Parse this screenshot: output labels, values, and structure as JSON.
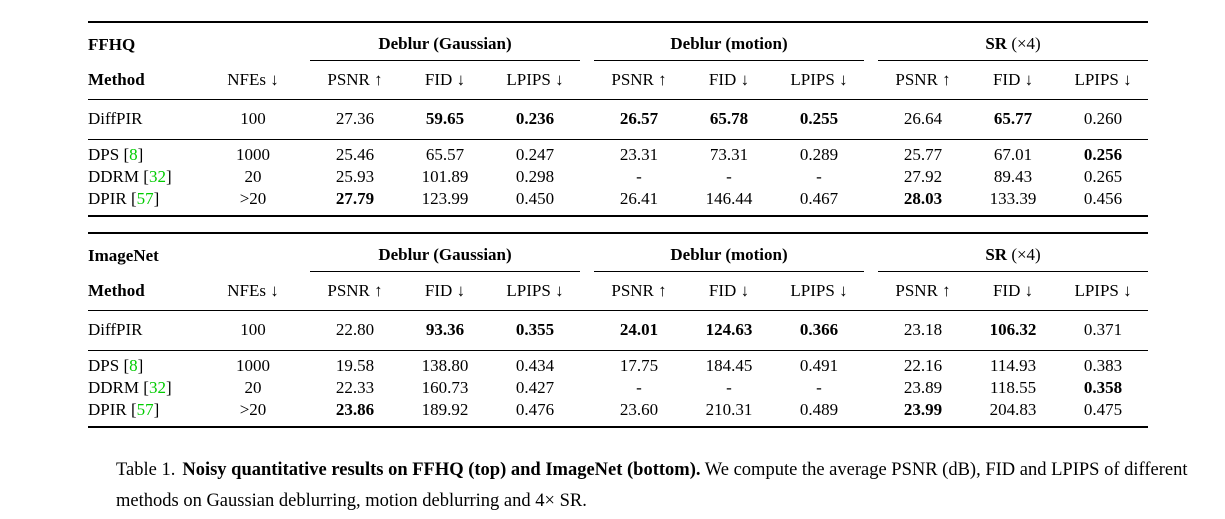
{
  "colors": {
    "cite_green": "#00CC00",
    "text": "#000000",
    "background": "#ffffff",
    "rule": "#000000"
  },
  "metric_labels": [
    "PSNR ↑",
    "FID ↓",
    "LPIPS ↓"
  ],
  "tables": [
    {
      "dataset": "FFHQ",
      "method_label": "Method",
      "nfes_label": "NFEs ↓",
      "groups": [
        {
          "bold": "Deblur (Gaussian)",
          "normal": ""
        },
        {
          "bold": "Deblur (motion)",
          "normal": ""
        },
        {
          "bold": "SR",
          "normal": " (×4)"
        }
      ],
      "rows": [
        {
          "method": "DiffPIR",
          "cite": null,
          "nfes": "100",
          "cells": [
            [
              "27.36",
              0
            ],
            [
              "59.65",
              1
            ],
            [
              "0.236",
              1
            ],
            [
              "26.57",
              1
            ],
            [
              "65.78",
              1
            ],
            [
              "0.255",
              1
            ],
            [
              "26.64",
              0
            ],
            [
              "65.77",
              1
            ],
            [
              "0.260",
              0
            ]
          ]
        },
        {
          "method": "DPS",
          "cite": "8",
          "nfes": "1000",
          "cells": [
            [
              "25.46",
              0
            ],
            [
              "65.57",
              0
            ],
            [
              "0.247",
              0
            ],
            [
              "23.31",
              0
            ],
            [
              "73.31",
              0
            ],
            [
              "0.289",
              0
            ],
            [
              "25.77",
              0
            ],
            [
              "67.01",
              0
            ],
            [
              "0.256",
              1
            ]
          ]
        },
        {
          "method": "DDRM",
          "cite": "32",
          "nfes": "20",
          "cells": [
            [
              "25.93",
              0
            ],
            [
              "101.89",
              0
            ],
            [
              "0.298",
              0
            ],
            [
              "-",
              0
            ],
            [
              "-",
              0
            ],
            [
              "-",
              0
            ],
            [
              "27.92",
              0
            ],
            [
              "89.43",
              0
            ],
            [
              "0.265",
              0
            ]
          ]
        },
        {
          "method": "DPIR",
          "cite": "57",
          "nfes": ">20",
          "cells": [
            [
              "27.79",
              1
            ],
            [
              "123.99",
              0
            ],
            [
              "0.450",
              0
            ],
            [
              "26.41",
              0
            ],
            [
              "146.44",
              0
            ],
            [
              "0.467",
              0
            ],
            [
              "28.03",
              1
            ],
            [
              "133.39",
              0
            ],
            [
              "0.456",
              0
            ]
          ]
        }
      ]
    },
    {
      "dataset": "ImageNet",
      "method_label": "Method",
      "nfes_label": "NFEs ↓",
      "groups": [
        {
          "bold": "Deblur (Gaussian)",
          "normal": ""
        },
        {
          "bold": "Deblur (motion)",
          "normal": ""
        },
        {
          "bold": "SR",
          "normal": " (×4)"
        }
      ],
      "rows": [
        {
          "method": "DiffPIR",
          "cite": null,
          "nfes": "100",
          "cells": [
            [
              "22.80",
              0
            ],
            [
              "93.36",
              1
            ],
            [
              "0.355",
              1
            ],
            [
              "24.01",
              1
            ],
            [
              "124.63",
              1
            ],
            [
              "0.366",
              1
            ],
            [
              "23.18",
              0
            ],
            [
              "106.32",
              1
            ],
            [
              "0.371",
              0
            ]
          ]
        },
        {
          "method": "DPS",
          "cite": "8",
          "nfes": "1000",
          "cells": [
            [
              "19.58",
              0
            ],
            [
              "138.80",
              0
            ],
            [
              "0.434",
              0
            ],
            [
              "17.75",
              0
            ],
            [
              "184.45",
              0
            ],
            [
              "0.491",
              0
            ],
            [
              "22.16",
              0
            ],
            [
              "114.93",
              0
            ],
            [
              "0.383",
              0
            ]
          ]
        },
        {
          "method": "DDRM",
          "cite": "32",
          "nfes": "20",
          "cells": [
            [
              "22.33",
              0
            ],
            [
              "160.73",
              0
            ],
            [
              "0.427",
              0
            ],
            [
              "-",
              0
            ],
            [
              "-",
              0
            ],
            [
              "-",
              0
            ],
            [
              "23.89",
              0
            ],
            [
              "118.55",
              0
            ],
            [
              "0.358",
              1
            ]
          ]
        },
        {
          "method": "DPIR",
          "cite": "57",
          "nfes": ">20",
          "cells": [
            [
              "23.86",
              1
            ],
            [
              "189.92",
              0
            ],
            [
              "0.476",
              0
            ],
            [
              "23.60",
              0
            ],
            [
              "210.31",
              0
            ],
            [
              "0.489",
              0
            ],
            [
              "23.99",
              1
            ],
            [
              "204.83",
              0
            ],
            [
              "0.475",
              0
            ]
          ]
        }
      ]
    }
  ],
  "caption": {
    "prefix": "Table 1.",
    "bold": "Noisy quantitative results on FFHQ (top) and ImageNet (bottom).",
    "rest": "We compute the average PSNR (dB), FID and LPIPS of different methods on Gaussian deblurring, motion deblurring and 4× SR."
  }
}
